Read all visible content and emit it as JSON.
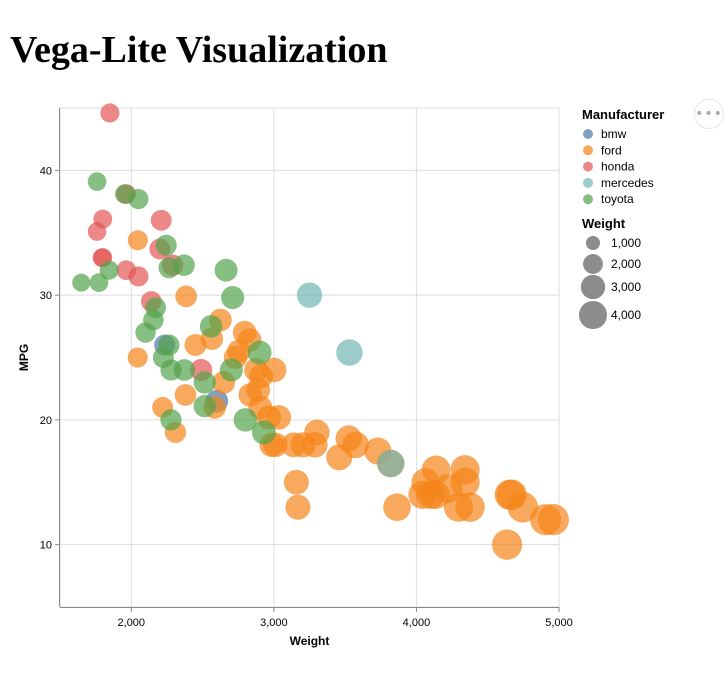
{
  "page": {
    "title": "Vega-Lite Visualization"
  },
  "menu": {
    "icon": "ellipsis-icon"
  },
  "chart_data": {
    "type": "scatter",
    "xlabel": "Weight",
    "ylabel": "MPG",
    "xlim": [
      1500,
      5000
    ],
    "ylim": [
      5,
      45
    ],
    "x_ticks": [
      2000,
      3000,
      4000,
      5000
    ],
    "y_ticks": [
      10,
      20,
      30,
      40
    ],
    "x_tick_labels": [
      "2,000",
      "3,000",
      "4,000",
      "5,000"
    ],
    "y_tick_labels": [
      "10",
      "20",
      "30",
      "40"
    ],
    "grid": true,
    "color_legend": {
      "title": "Manufacturer",
      "position": "right",
      "entries": [
        {
          "name": "bmw",
          "color": "#4c78a8"
        },
        {
          "name": "ford",
          "color": "#f58518"
        },
        {
          "name": "honda",
          "color": "#e45756"
        },
        {
          "name": "mercedes",
          "color": "#72b7b2"
        },
        {
          "name": "toyota",
          "color": "#54a24b"
        }
      ]
    },
    "size_legend": {
      "title": "Weight",
      "position": "right",
      "entries": [
        {
          "label": "1,000",
          "value": 1000
        },
        {
          "label": "2,000",
          "value": 2000
        },
        {
          "label": "3,000",
          "value": 3000
        },
        {
          "label": "4,000",
          "value": 4000
        }
      ]
    },
    "series": [
      {
        "name": "bmw",
        "points": [
          [
            2234,
            26
          ],
          [
            2600,
            21.5
          ]
        ]
      },
      {
        "name": "ford",
        "points": [
          [
            4636,
            10
          ],
          [
            4906,
            12
          ],
          [
            4042,
            14
          ],
          [
            4098,
            14
          ],
          [
            4135,
            14
          ],
          [
            4655,
            14
          ],
          [
            4668,
            14
          ],
          [
            4221,
            14.5
          ],
          [
            4064,
            15
          ],
          [
            4341,
            15
          ],
          [
            3158,
            15
          ],
          [
            4341,
            16
          ],
          [
            4138,
            16
          ],
          [
            3864,
            13
          ],
          [
            4295,
            13
          ],
          [
            4376,
            13
          ],
          [
            4746,
            13
          ],
          [
            3169,
            13
          ],
          [
            3139,
            18
          ],
          [
            3288,
            18
          ],
          [
            3012,
            18
          ],
          [
            3205,
            18
          ],
          [
            2984,
            18
          ],
          [
            3574,
            18
          ],
          [
            3525,
            18.5
          ],
          [
            3302,
            19
          ],
          [
            3459,
            17
          ],
          [
            3730,
            17.5
          ],
          [
            3820,
            16.5
          ],
          [
            2310,
            19
          ],
          [
            2220,
            21
          ],
          [
            2965,
            20.2
          ],
          [
            2905,
            21
          ],
          [
            3035,
            20.2
          ],
          [
            2835,
            22
          ],
          [
            2890,
            22.4
          ],
          [
            2585,
            21
          ],
          [
            2648,
            23
          ],
          [
            2875,
            24
          ],
          [
            3003,
            24
          ],
          [
            2910,
            23.5
          ],
          [
            2730,
            25
          ],
          [
            2755,
            25.5
          ],
          [
            2565,
            26.5
          ],
          [
            2830,
            26.4
          ],
          [
            2795,
            27
          ],
          [
            2625,
            28
          ],
          [
            2385,
            29.9
          ],
          [
            2450,
            26
          ],
          [
            2380,
            22
          ],
          [
            2045,
            25
          ],
          [
            2046,
            34.4
          ],
          [
            4960,
            12
          ]
        ]
      },
      {
        "name": "honda",
        "points": [
          [
            1850,
            44.6
          ],
          [
            1800,
            36.1
          ],
          [
            1760,
            35.1
          ],
          [
            1965,
            38.1
          ],
          [
            1800,
            33
          ],
          [
            2210,
            36
          ],
          [
            2200,
            33.7
          ],
          [
            2290,
            32.4
          ],
          [
            2050,
            31.5
          ],
          [
            1965,
            32
          ],
          [
            2140,
            29.5
          ],
          [
            2490,
            24
          ],
          [
            1795,
            33
          ]
        ]
      },
      {
        "name": "mercedes",
        "points": [
          [
            3250,
            30
          ],
          [
            3530,
            25.4
          ],
          [
            3820,
            16.5
          ]
        ]
      },
      {
        "name": "toyota",
        "points": [
          [
            1760,
            39.1
          ],
          [
            1649,
            31
          ],
          [
            1773,
            31
          ],
          [
            1845,
            32
          ],
          [
            1955,
            38.1
          ],
          [
            2050,
            37.7
          ],
          [
            2245,
            34
          ],
          [
            2265,
            32.2
          ],
          [
            2370,
            32.4
          ],
          [
            2665,
            32
          ],
          [
            2711,
            29.8
          ],
          [
            2155,
            28
          ],
          [
            2100,
            27
          ],
          [
            2560,
            27.5
          ],
          [
            2900,
            25.4
          ],
          [
            2225,
            25
          ],
          [
            2264,
            26
          ],
          [
            2279,
            24
          ],
          [
            2372,
            24
          ],
          [
            2702,
            24
          ],
          [
            2515,
            23
          ],
          [
            2515,
            21.1
          ],
          [
            2800,
            20
          ],
          [
            2930,
            19
          ],
          [
            2278,
            20
          ],
          [
            2171,
            29
          ]
        ]
      }
    ]
  }
}
